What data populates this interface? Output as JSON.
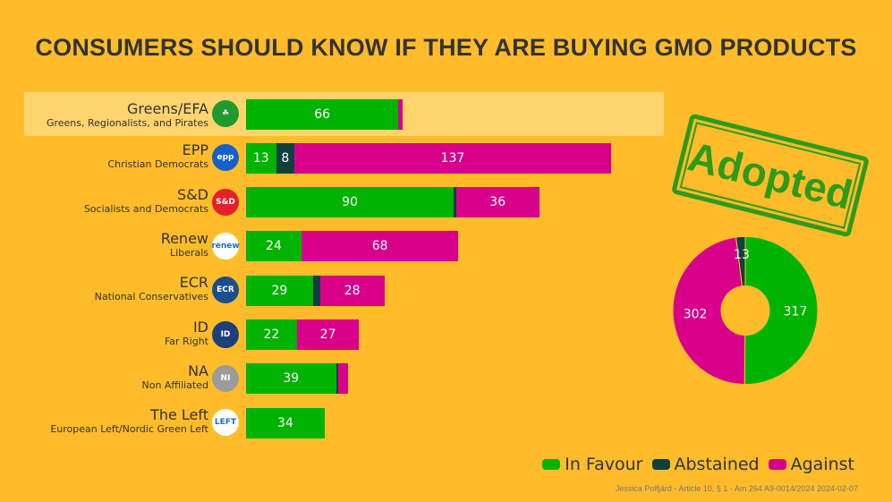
{
  "title": "CONSUMERS SHOULD KNOW IF THEY ARE BUYING GMO PRODUCTS",
  "stamp": "Adopted",
  "colors": {
    "favour": "#00B300",
    "abstained": "#0F3F3F",
    "against": "#D8008A"
  },
  "legend": [
    "In Favour",
    "Abstained",
    "Against"
  ],
  "footer": "Jessica Polfjärd - Article 10, § 1 - Am 264 A9-0014/2024 2024-02-07",
  "chart_data": {
    "type": "bar",
    "stacked": true,
    "orientation": "horizontal",
    "title": "CONSUMERS SHOULD KNOW IF THEY ARE BUYING GMO PRODUCTS",
    "categories": [
      "Greens/EFA",
      "EPP",
      "S&D",
      "Renew",
      "ECR",
      "ID",
      "NA",
      "The Left"
    ],
    "subtitles": [
      "Greens, Regionalists, and Pirates",
      "Christian Democrats",
      "Socialists and Democrats",
      "Liberals",
      "National Conservatives",
      "Far Right",
      "Non Affiliated",
      "European Left/Nordic Green Left"
    ],
    "logos": [
      {
        "t": "☘",
        "c": "#1E9A2E"
      },
      {
        "t": "epp",
        "c": "#1660C8"
      },
      {
        "t": "S&D",
        "c": "#E4202A"
      },
      {
        "t": "renew",
        "c": "#ffffff"
      },
      {
        "t": "ECR",
        "c": "#1A4F8F"
      },
      {
        "t": "ID",
        "c": "#1D3F7A"
      },
      {
        "t": "NI",
        "c": "#9B9B9B"
      },
      {
        "t": "LEFT",
        "c": "#ffffff"
      }
    ],
    "series": [
      {
        "name": "In Favour",
        "values": [
          66,
          13,
          90,
          24,
          29,
          22,
          39,
          34
        ]
      },
      {
        "name": "Abstained",
        "values": [
          0,
          8,
          1,
          0,
          3,
          0,
          1,
          0
        ]
      },
      {
        "name": "Against",
        "values": [
          2,
          137,
          36,
          68,
          28,
          27,
          4,
          0
        ]
      }
    ],
    "highlighted": "Greens/EFA",
    "totals": {
      "type": "pie",
      "labels": [
        "In Favour",
        "Against",
        "Abstained"
      ],
      "values": [
        317,
        302,
        13
      ]
    }
  }
}
